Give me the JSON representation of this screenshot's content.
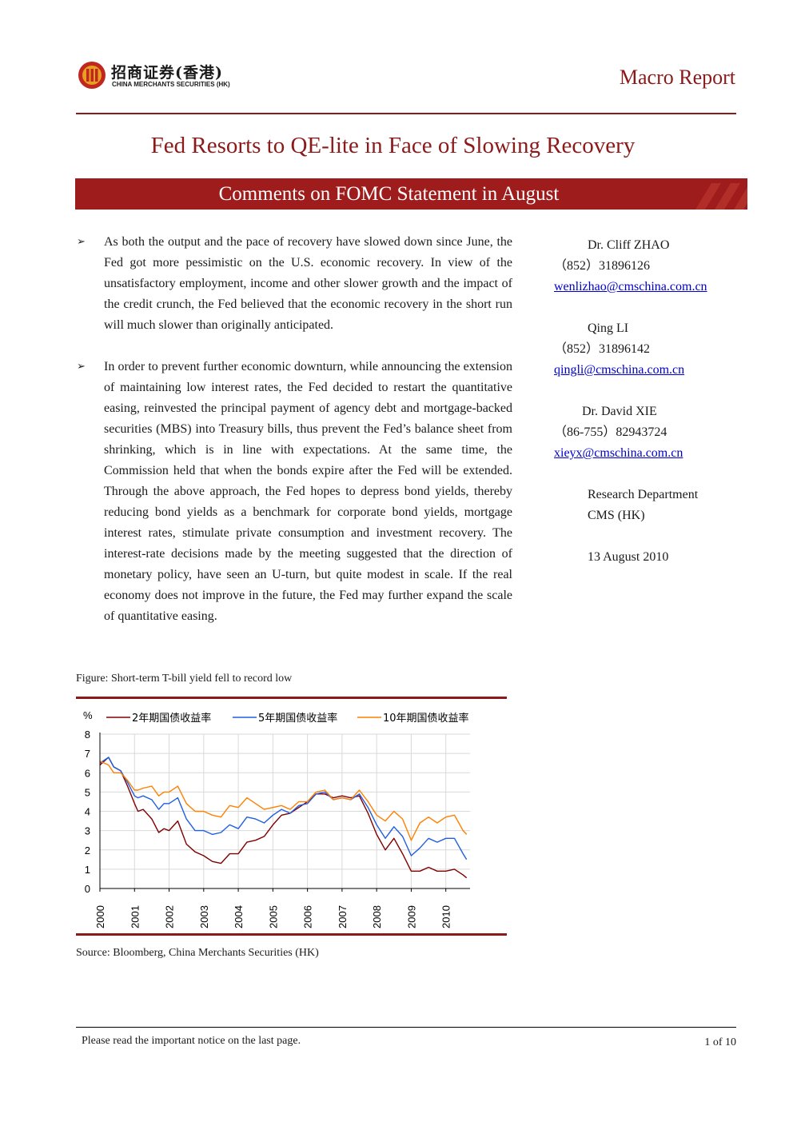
{
  "header": {
    "logo_cn": "招商证券(香港)",
    "logo_en": "CHINA MERCHANTS SECURITIES (HK)",
    "report_type": "Macro Report"
  },
  "title": "Fed Resorts to QE-lite in Face of Slowing Recovery",
  "banner": "Comments on FOMC Statement in August",
  "bullets": [
    "As both the output and the pace of recovery have slowed down since June, the Fed got more pessimistic on the U.S. economic recovery. In view of the unsatisfactory employment, income and other slower growth and the impact of the credit crunch, the Fed believed that the economic recovery in the short run will much slower than originally anticipated.",
    "In order to prevent further economic downturn, while announcing the extension of maintaining low interest rates, the Fed decided to restart the quantitative easing, reinvested the principal payment of agency debt and mortgage-backed securities (MBS) into Treasury bills, thus prevent the Fed’s balance sheet from shrinking, which is in line with expectations. At the same time, the Commission held that when the bonds expire after the Fed will be extended. Through the above approach, the Fed hopes to depress bond yields, thereby reducing bond yields as a benchmark for corporate bond yields, mortgage interest rates, stimulate private consumption and investment recovery. The interest-rate decisions made by the meeting suggested that the direction of monetary policy, have seen an U-turn, but quite modest in scale. If the real economy does not improve in the future, the Fed may further expand the scale of quantitative easing."
  ],
  "analysts": [
    {
      "name": "Dr. Cliff ZHAO",
      "phone": "（852）31896126",
      "email": "wenlizhao@cmschina.com.cn"
    },
    {
      "name": "Qing LI",
      "phone": "（852）31896142",
      "email": "qingli@cmschina.com.cn"
    },
    {
      "name": "Dr. David XIE",
      "phone": "（86-755）82943724",
      "email": "xieyx@cmschina.com.cn"
    }
  ],
  "department": "Research Department",
  "company": "CMS (HK)",
  "date": "13 August 2010",
  "figure": {
    "caption": "Figure: Short-term T-bill yield fell to record low",
    "source": "Source: Bloomberg, China Merchants Securities (HK)"
  },
  "chart_data": {
    "type": "line",
    "title": "",
    "ylabel": "%",
    "xlabel": "",
    "ylim": [
      0,
      8
    ],
    "xlim": [
      2000,
      2010.7
    ],
    "yticks": [
      0,
      1,
      2,
      3,
      4,
      5,
      6,
      7,
      8
    ],
    "xticks": [
      "2000",
      "2001",
      "2002",
      "2003",
      "2004",
      "2005",
      "2006",
      "2007",
      "2008",
      "2009",
      "2010"
    ],
    "grid": true,
    "legend_position": "top",
    "x": [
      2000.0,
      2000.25,
      2000.4,
      2000.6,
      2000.8,
      2001.0,
      2001.1,
      2001.25,
      2001.5,
      2001.7,
      2001.85,
      2002.0,
      2002.25,
      2002.5,
      2002.75,
      2003.0,
      2003.25,
      2003.5,
      2003.75,
      2004.0,
      2004.25,
      2004.5,
      2004.75,
      2005.0,
      2005.25,
      2005.5,
      2005.75,
      2006.0,
      2006.25,
      2006.5,
      2006.75,
      2007.0,
      2007.25,
      2007.5,
      2007.75,
      2008.0,
      2008.25,
      2008.5,
      2008.75,
      2009.0,
      2009.25,
      2009.5,
      2009.75,
      2010.0,
      2010.25,
      2010.5,
      2010.6
    ],
    "series": [
      {
        "name": "2年期国债收益率",
        "color": "#800000",
        "values": [
          6.4,
          6.8,
          6.3,
          6.1,
          5.3,
          4.4,
          4.0,
          4.1,
          3.6,
          2.9,
          3.1,
          3.0,
          3.5,
          2.3,
          1.9,
          1.7,
          1.4,
          1.3,
          1.8,
          1.8,
          2.4,
          2.5,
          2.7,
          3.3,
          3.8,
          3.9,
          4.2,
          4.5,
          4.9,
          4.9,
          4.7,
          4.8,
          4.7,
          4.8,
          3.9,
          2.8,
          2.0,
          2.6,
          1.8,
          0.9,
          0.9,
          1.1,
          0.9,
          0.9,
          1.0,
          0.7,
          0.55
        ]
      },
      {
        "name": "5年期国债收益率",
        "color": "#1f5fe0",
        "values": [
          6.5,
          6.8,
          6.3,
          6.1,
          5.5,
          4.8,
          4.7,
          4.8,
          4.6,
          4.1,
          4.4,
          4.4,
          4.7,
          3.6,
          3.0,
          3.0,
          2.8,
          2.9,
          3.3,
          3.1,
          3.7,
          3.6,
          3.4,
          3.8,
          4.1,
          3.9,
          4.3,
          4.4,
          4.9,
          5.0,
          4.6,
          4.7,
          4.6,
          4.9,
          4.2,
          3.3,
          2.6,
          3.2,
          2.7,
          1.7,
          2.1,
          2.6,
          2.4,
          2.6,
          2.6,
          1.8,
          1.5
        ]
      },
      {
        "name": "10年期国债收益率",
        "color": "#ff8000",
        "values": [
          6.6,
          6.4,
          6.0,
          6.0,
          5.6,
          5.1,
          5.1,
          5.2,
          5.3,
          4.8,
          5.0,
          5.0,
          5.3,
          4.4,
          4.0,
          4.0,
          3.8,
          3.7,
          4.3,
          4.2,
          4.7,
          4.4,
          4.1,
          4.2,
          4.3,
          4.1,
          4.5,
          4.5,
          5.0,
          5.1,
          4.6,
          4.7,
          4.6,
          5.1,
          4.5,
          3.8,
          3.5,
          4.0,
          3.6,
          2.5,
          3.4,
          3.7,
          3.4,
          3.7,
          3.8,
          3.0,
          2.8
        ]
      }
    ]
  },
  "footer": {
    "notice": "Please read the important notice on the last page.",
    "page": "1 of 10"
  }
}
